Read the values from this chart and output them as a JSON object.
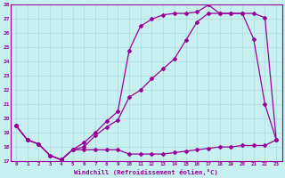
{
  "xlabel": "Windchill (Refroidissement éolien,°C)",
  "bg_color": "#c8f0f0",
  "line_color": "#990099",
  "grid_color": "#b0dede",
  "xlim": [
    -0.5,
    23.5
  ],
  "ylim": [
    17,
    28
  ],
  "xticks": [
    0,
    1,
    2,
    3,
    4,
    5,
    6,
    7,
    8,
    9,
    10,
    11,
    12,
    13,
    14,
    15,
    16,
    17,
    18,
    19,
    20,
    21,
    22,
    23
  ],
  "yticks": [
    17,
    18,
    19,
    20,
    21,
    22,
    23,
    24,
    25,
    26,
    27,
    28
  ],
  "line1_x": [
    0,
    1,
    2,
    3,
    4,
    5,
    6,
    7,
    8,
    9,
    10,
    11,
    12,
    13,
    14,
    15,
    16,
    17,
    18,
    19,
    20,
    21,
    22,
    23
  ],
  "line1_y": [
    19.5,
    18.5,
    18.2,
    17.4,
    17.1,
    17.8,
    17.8,
    17.8,
    17.8,
    17.8,
    17.5,
    17.5,
    17.5,
    17.5,
    17.6,
    17.7,
    17.8,
    17.9,
    18.0,
    18.0,
    18.1,
    18.1,
    18.1,
    18.5
  ],
  "line2_x": [
    0,
    1,
    2,
    3,
    4,
    5,
    6,
    7,
    8,
    9,
    10,
    11,
    12,
    13,
    14,
    15,
    16,
    17,
    18,
    19,
    20,
    21,
    22,
    23
  ],
  "line2_y": [
    19.5,
    18.5,
    18.2,
    17.4,
    17.1,
    17.8,
    18.0,
    18.8,
    19.4,
    19.9,
    21.5,
    22.0,
    22.8,
    23.5,
    24.2,
    25.5,
    26.8,
    27.4,
    27.4,
    27.4,
    27.4,
    27.4,
    27.1,
    18.5
  ],
  "line3_x": [
    0,
    1,
    2,
    3,
    4,
    5,
    6,
    7,
    8,
    9,
    10,
    11,
    12,
    13,
    14,
    15,
    16,
    17,
    18,
    19,
    20,
    21,
    22,
    23
  ],
  "line3_y": [
    19.5,
    18.5,
    18.2,
    17.4,
    17.1,
    17.8,
    18.3,
    19.0,
    19.8,
    20.5,
    24.8,
    26.5,
    27.0,
    27.3,
    27.4,
    27.4,
    27.5,
    28.0,
    27.4,
    27.4,
    27.4,
    25.6,
    21.0,
    18.5
  ]
}
